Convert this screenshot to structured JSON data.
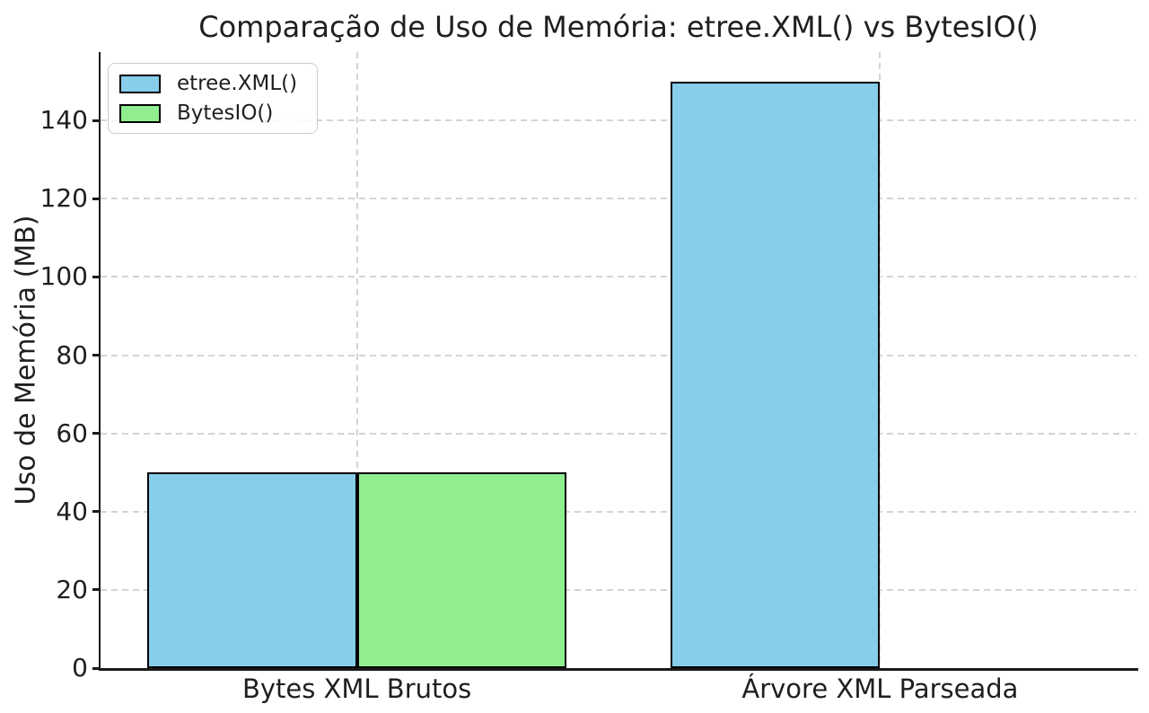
{
  "figure": {
    "background": "#ffffff",
    "text_color": "#1f1f1f"
  },
  "chart_data": {
    "type": "bar",
    "title": "Comparação de Uso de Memória: etree.XML() vs BytesIO()",
    "xlabel": "",
    "ylabel": "Uso de Memória (MB)",
    "categories": [
      "Bytes XML Brutos",
      "Árvore XML Parseada"
    ],
    "series": [
      {
        "name": "etree.XML()",
        "values": [
          50,
          150
        ],
        "color": "#87CEEB"
      },
      {
        "name": "BytesIO()",
        "values": [
          50,
          0
        ],
        "color": "#90EE90"
      }
    ],
    "bar_edge_color": "#000000",
    "bar_width": 0.4,
    "ylim": [
      0,
      157.5
    ],
    "xlim": [
      -0.49,
      1.49
    ],
    "yticks": [
      0,
      20,
      40,
      60,
      80,
      100,
      120,
      140
    ],
    "grid": {
      "on": true,
      "style": "dashed",
      "color": "#d4d4d4",
      "axes": "both"
    },
    "legend": {
      "position": "upper-left",
      "frame": true,
      "entries": [
        "etree.XML()",
        "BytesIO()"
      ]
    },
    "spines": [
      "left",
      "bottom"
    ]
  }
}
